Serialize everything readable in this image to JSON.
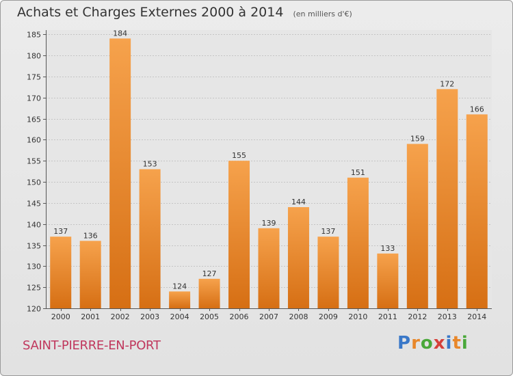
{
  "title": "Achats et Charges Externes 2000 à 2014",
  "subtitle": "(en milliers d'€)",
  "place_name": "SAINT-PIERRE-EN-PORT",
  "logo": {
    "text": "Proxiti",
    "colors": [
      "#3a78c8",
      "#e8872a",
      "#4aa83a",
      "#d6413a",
      "#3a78c8",
      "#e8872a",
      "#4aa83a"
    ]
  },
  "chart_data": {
    "type": "bar",
    "categories": [
      "2000",
      "2001",
      "2002",
      "2003",
      "2004",
      "2005",
      "2006",
      "2007",
      "2008",
      "2009",
      "2010",
      "2011",
      "2012",
      "2013",
      "2014"
    ],
    "values": [
      137,
      136,
      184,
      153,
      124,
      127,
      155,
      139,
      144,
      137,
      151,
      133,
      159,
      172,
      166
    ],
    "ylim": [
      120,
      186
    ],
    "yticks": [
      120,
      125,
      130,
      135,
      140,
      145,
      150,
      155,
      160,
      165,
      170,
      175,
      180,
      185
    ],
    "grid": true,
    "bar_color_top": "#f6a24c",
    "bar_color_bottom": "#d66f14"
  }
}
